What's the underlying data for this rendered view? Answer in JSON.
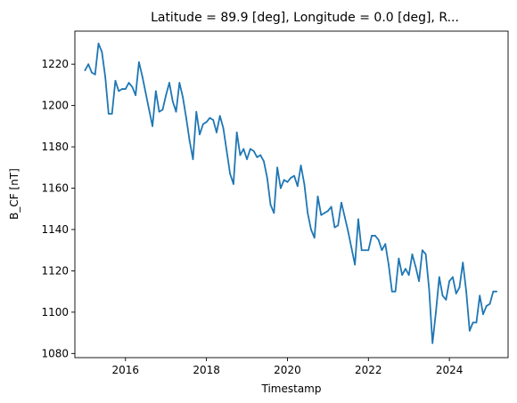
{
  "chart_data": {
    "type": "line",
    "title": "Latitude = 89.9 [deg], Longitude = 0.0 [deg], R...",
    "xlabel": "Timestamp",
    "ylabel": "B_CF [nT]",
    "xlim": [
      2014.75,
      2025.45
    ],
    "ylim": [
      1078,
      1236
    ],
    "xticks": [
      2016,
      2018,
      2020,
      2022,
      2024
    ],
    "yticks": [
      1080,
      1100,
      1120,
      1140,
      1160,
      1180,
      1200,
      1220
    ],
    "grid": false,
    "line_color": "#1f77b4",
    "series": [
      {
        "x": [
          2015.0,
          2015.083,
          2015.167,
          2015.25,
          2015.333,
          2015.417,
          2015.5,
          2015.583,
          2015.667,
          2015.75,
          2015.833,
          2015.917,
          2016.0,
          2016.083,
          2016.167,
          2016.25,
          2016.333,
          2016.417,
          2016.5,
          2016.583,
          2016.667,
          2016.75,
          2016.833,
          2016.917,
          2017.0,
          2017.083,
          2017.167,
          2017.25,
          2017.333,
          2017.417,
          2017.5,
          2017.583,
          2017.667,
          2017.75,
          2017.833,
          2017.917,
          2018.0,
          2018.083,
          2018.167,
          2018.25,
          2018.333,
          2018.417,
          2018.5,
          2018.583,
          2018.667,
          2018.75,
          2018.833,
          2018.917,
          2019.0,
          2019.083,
          2019.167,
          2019.25,
          2019.333,
          2019.417,
          2019.5,
          2019.583,
          2019.667,
          2019.75,
          2019.833,
          2019.917,
          2020.0,
          2020.083,
          2020.167,
          2020.25,
          2020.333,
          2020.417,
          2020.5,
          2020.583,
          2020.667,
          2020.75,
          2020.833,
          2020.917,
          2021.0,
          2021.083,
          2021.167,
          2021.25,
          2021.333,
          2021.417,
          2021.5,
          2021.583,
          2021.667,
          2021.75,
          2021.833,
          2021.917,
          2022.0,
          2022.083,
          2022.167,
          2022.25,
          2022.333,
          2022.417,
          2022.5,
          2022.583,
          2022.667,
          2022.75,
          2022.833,
          2022.917,
          2023.0,
          2023.083,
          2023.167,
          2023.25,
          2023.333,
          2023.417,
          2023.5,
          2023.583,
          2023.667,
          2023.75,
          2023.833,
          2023.917,
          2024.0,
          2024.083,
          2024.167,
          2024.25,
          2024.333,
          2024.417,
          2024.5,
          2024.583,
          2024.667,
          2024.75,
          2024.833,
          2024.917,
          2025.0,
          2025.083,
          2025.167
        ],
        "values": [
          1217,
          1220,
          1216,
          1215,
          1230,
          1226,
          1214,
          1196,
          1196,
          1212,
          1207,
          1208,
          1208,
          1211,
          1209,
          1205,
          1221,
          1214,
          1206,
          1198,
          1190,
          1207,
          1197,
          1198,
          1205,
          1211,
          1202,
          1197,
          1211,
          1204,
          1194,
          1183,
          1174,
          1197,
          1186,
          1191,
          1192,
          1194,
          1193,
          1187,
          1195,
          1189,
          1178,
          1167,
          1162,
          1187,
          1176,
          1179,
          1174,
          1179,
          1178,
          1175,
          1176,
          1173,
          1165,
          1152,
          1148,
          1170,
          1160,
          1164,
          1163,
          1165,
          1166,
          1161,
          1171,
          1162,
          1148,
          1140,
          1136,
          1156,
          1147,
          1148,
          1149,
          1151,
          1141,
          1142,
          1153,
          1146,
          1139,
          1131,
          1123,
          1145,
          1130,
          1130,
          1130,
          1137,
          1137,
          1135,
          1130,
          1133,
          1123,
          1110,
          1110,
          1126,
          1118,
          1121,
          1118,
          1128,
          1122,
          1115,
          1130,
          1128,
          1111,
          1085,
          1100,
          1117,
          1108,
          1106,
          1115,
          1117,
          1109,
          1112,
          1124,
          1110,
          1091,
          1095,
          1095,
          1108,
          1099,
          1103,
          1104,
          1110,
          1110
        ]
      }
    ]
  }
}
